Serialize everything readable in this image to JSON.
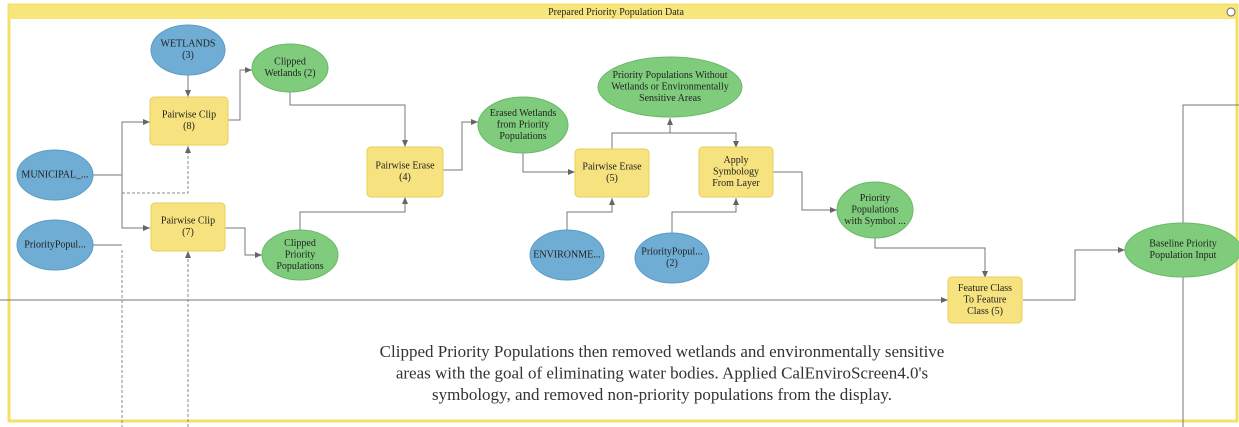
{
  "group": {
    "title": "Prepared Priority Population Data"
  },
  "nodes": [
    {
      "lines": [
        "WETLANDS",
        "(3)"
      ]
    },
    {
      "lines": [
        "Clipped",
        "Wetlands (2)"
      ]
    },
    {
      "lines": [
        "Pairwise Clip",
        "(8)"
      ]
    },
    {
      "lines": [
        "MUNICIPAL_..."
      ]
    },
    {
      "lines": [
        "PriorityPopul..."
      ]
    },
    {
      "lines": [
        "Pairwise Clip",
        "(7)"
      ]
    },
    {
      "lines": [
        "Clipped",
        "Priority",
        "Populations"
      ]
    },
    {
      "lines": [
        "Pairwise Erase",
        "(4)"
      ]
    },
    {
      "lines": [
        "Erased Wetlands",
        "from Priority",
        "Populations"
      ]
    },
    {
      "lines": [
        "Pairwise Erase",
        "(5)"
      ]
    },
    {
      "lines": [
        "Priority Populations Without",
        "Wetlands or Environmentally",
        "Sensitive Areas"
      ]
    },
    {
      "lines": [
        "Apply",
        "Symbology",
        "From Layer"
      ]
    },
    {
      "lines": [
        "ENVIRONME..."
      ]
    },
    {
      "lines": [
        "PriorityPopul...",
        "(2)"
      ]
    },
    {
      "lines": [
        "Priority",
        "Populations",
        "with Symbol ..."
      ]
    },
    {
      "lines": [
        "Feature Class",
        "To Feature",
        "Class (5)"
      ]
    },
    {
      "lines": [
        "Baseline Priority",
        "Population Input"
      ]
    }
  ],
  "annotation": {
    "lines": [
      "Clipped Priority Populations then removed wetlands and environmentally sensitive",
      "areas with the goal of eliminating water bodies. Applied CalEnviroScreen4.0's",
      "symbology, and removed non-priority populations from the display."
    ]
  }
}
